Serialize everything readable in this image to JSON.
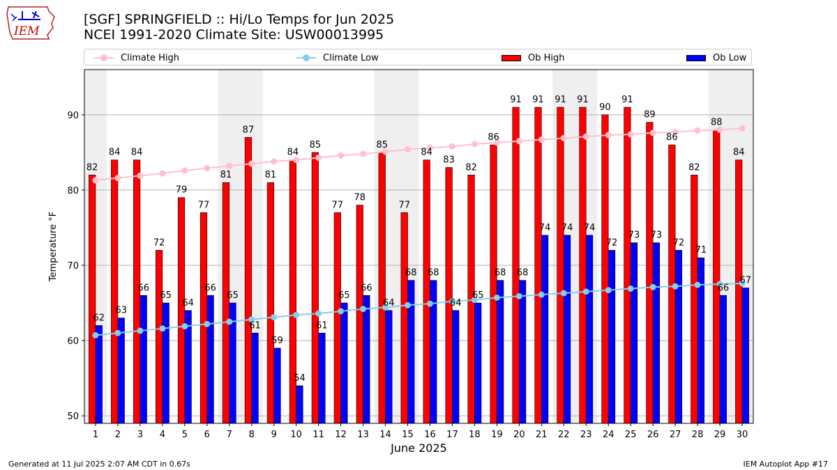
{
  "logo": {
    "text": "IEM"
  },
  "header": {
    "title_line1": "[SGF] SPRINGFIELD :: Hi/Lo Temps for Jun 2025",
    "title_line2": "NCEI 1991-2020 Climate Site: USW00013995"
  },
  "legend": {
    "climate_high": "Climate High",
    "climate_low": "Climate Low",
    "ob_high": "Ob High",
    "ob_low": "Ob Low"
  },
  "footer": {
    "left": "Generated at 11 Jul 2025 2:07 AM CDT in 0.67s",
    "right": "IEM Autoplot App #17"
  },
  "colors": {
    "ob_high": "#ff0000",
    "ob_low": "#0000ff",
    "climate_high": "#ffc0cb",
    "climate_low": "#87ceeb",
    "shade": "#efefef"
  },
  "chart_data": {
    "type": "bar",
    "xlabel": "June 2025",
    "ylabel": "Temperature °F",
    "ylim": [
      49,
      96
    ],
    "yticks": [
      50,
      60,
      70,
      80,
      90
    ],
    "grid": true,
    "legend_position": "top",
    "categories": [
      1,
      2,
      3,
      4,
      5,
      6,
      7,
      8,
      9,
      10,
      11,
      12,
      13,
      14,
      15,
      16,
      17,
      18,
      19,
      20,
      21,
      22,
      23,
      24,
      25,
      26,
      27,
      28,
      29,
      30
    ],
    "shaded_days": [
      1,
      7,
      8,
      14,
      15,
      22,
      23,
      29,
      30
    ],
    "series": [
      {
        "name": "Ob High",
        "type": "bar",
        "values": [
          82,
          84,
          84,
          72,
          79,
          77,
          81,
          87,
          81,
          84,
          85,
          77,
          78,
          85,
          77,
          84,
          83,
          82,
          86,
          91,
          91,
          91,
          91,
          90,
          91,
          89,
          86,
          82,
          88,
          84
        ]
      },
      {
        "name": "Ob Low",
        "type": "bar",
        "values": [
          62,
          63,
          66,
          65,
          64,
          66,
          65,
          61,
          59,
          54,
          61,
          65,
          66,
          64,
          68,
          68,
          64,
          65,
          68,
          68,
          74,
          74,
          74,
          72,
          73,
          73,
          72,
          71,
          66,
          67
        ]
      },
      {
        "name": "Climate High",
        "type": "line",
        "values": [
          81.3,
          81.6,
          81.9,
          82.2,
          82.6,
          82.9,
          83.2,
          83.5,
          83.8,
          84.0,
          84.3,
          84.6,
          84.8,
          85.1,
          85.4,
          85.6,
          85.8,
          86.1,
          86.3,
          86.5,
          86.7,
          86.9,
          87.1,
          87.3,
          87.4,
          87.6,
          87.7,
          87.9,
          88.0,
          88.2
        ]
      },
      {
        "name": "Climate Low",
        "type": "line",
        "values": [
          60.7,
          61.0,
          61.3,
          61.6,
          61.9,
          62.2,
          62.5,
          62.8,
          63.1,
          63.4,
          63.6,
          63.9,
          64.2,
          64.4,
          64.7,
          64.9,
          65.2,
          65.4,
          65.7,
          65.9,
          66.1,
          66.3,
          66.5,
          66.7,
          66.9,
          67.1,
          67.2,
          67.4,
          67.5,
          67.6
        ]
      }
    ]
  }
}
